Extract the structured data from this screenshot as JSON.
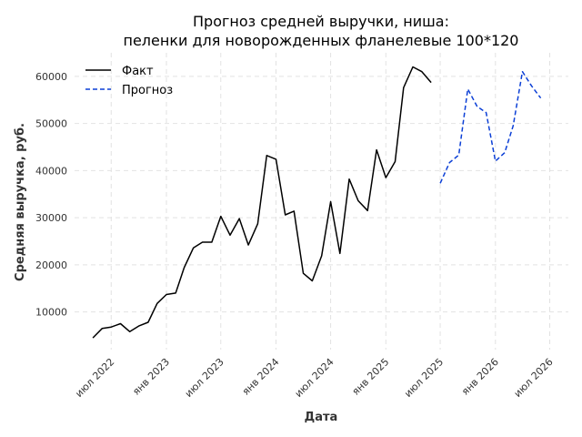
{
  "chart_data": {
    "type": "line",
    "title": "Прогноз средней выручки, ниша:",
    "subtitle": "пеленки для новорожденных фланелевые 100*120",
    "xlabel": "Дата",
    "ylabel": "Средняя выручка, руб.",
    "xlim": [
      "2022-03-01",
      "2026-09-01"
    ],
    "ylim": [
      2000,
      65000
    ],
    "grid": true,
    "legend_position": "top-left",
    "x_ticks": [
      {
        "date": "2022-07-01",
        "label": "июл 2022"
      },
      {
        "date": "2023-01-01",
        "label": "янв 2023"
      },
      {
        "date": "2023-07-01",
        "label": "июл 2023"
      },
      {
        "date": "2024-01-01",
        "label": "янв 2024"
      },
      {
        "date": "2024-07-01",
        "label": "июл 2024"
      },
      {
        "date": "2025-01-01",
        "label": "янв 2025"
      },
      {
        "date": "2025-07-01",
        "label": "июл 2025"
      },
      {
        "date": "2026-01-01",
        "label": "янв 2026"
      },
      {
        "date": "2026-07-01",
        "label": "июл 2026"
      }
    ],
    "y_ticks": [
      {
        "value": 10000,
        "label": "10000"
      },
      {
        "value": 20000,
        "label": "20000"
      },
      {
        "value": 30000,
        "label": "30000"
      },
      {
        "value": 40000,
        "label": "40000"
      },
      {
        "value": 50000,
        "label": "50000"
      },
      {
        "value": 60000,
        "label": "60000"
      }
    ],
    "series": [
      {
        "name": "Факт",
        "color": "#000000",
        "style": "solid",
        "points": [
          {
            "x": "2022-05-01",
            "y": 4500
          },
          {
            "x": "2022-06-01",
            "y": 6500
          },
          {
            "x": "2022-07-01",
            "y": 6800
          },
          {
            "x": "2022-08-01",
            "y": 7500
          },
          {
            "x": "2022-09-01",
            "y": 5800
          },
          {
            "x": "2022-10-01",
            "y": 7000
          },
          {
            "x": "2022-11-01",
            "y": 7800
          },
          {
            "x": "2022-12-01",
            "y": 11800
          },
          {
            "x": "2023-01-01",
            "y": 13700
          },
          {
            "x": "2023-02-01",
            "y": 14000
          },
          {
            "x": "2023-03-01",
            "y": 19400
          },
          {
            "x": "2023-04-01",
            "y": 23600
          },
          {
            "x": "2023-05-01",
            "y": 24800
          },
          {
            "x": "2023-06-01",
            "y": 24800
          },
          {
            "x": "2023-07-01",
            "y": 30300
          },
          {
            "x": "2023-08-01",
            "y": 26300
          },
          {
            "x": "2023-09-01",
            "y": 29800
          },
          {
            "x": "2023-10-01",
            "y": 24200
          },
          {
            "x": "2023-11-01",
            "y": 28700
          },
          {
            "x": "2023-12-01",
            "y": 43200
          },
          {
            "x": "2024-01-01",
            "y": 42400
          },
          {
            "x": "2024-02-01",
            "y": 30600
          },
          {
            "x": "2024-03-01",
            "y": 31400
          },
          {
            "x": "2024-04-01",
            "y": 18200
          },
          {
            "x": "2024-05-01",
            "y": 16600
          },
          {
            "x": "2024-06-01",
            "y": 21900
          },
          {
            "x": "2024-07-01",
            "y": 33400
          },
          {
            "x": "2024-08-01",
            "y": 22400
          },
          {
            "x": "2024-09-01",
            "y": 38200
          },
          {
            "x": "2024-10-01",
            "y": 33600
          },
          {
            "x": "2024-11-01",
            "y": 31500
          },
          {
            "x": "2024-12-01",
            "y": 44400
          },
          {
            "x": "2025-01-01",
            "y": 38500
          },
          {
            "x": "2025-02-01",
            "y": 41900
          },
          {
            "x": "2025-03-01",
            "y": 57600
          },
          {
            "x": "2025-04-01",
            "y": 62000
          },
          {
            "x": "2025-05-01",
            "y": 61000
          },
          {
            "x": "2025-06-01",
            "y": 58700
          }
        ]
      },
      {
        "name": "Прогноз",
        "color": "#0b3fd6",
        "style": "dashed",
        "points": [
          {
            "x": "2025-07-01",
            "y": 37300
          },
          {
            "x": "2025-08-01",
            "y": 41700
          },
          {
            "x": "2025-09-01",
            "y": 43300
          },
          {
            "x": "2025-10-01",
            "y": 57300
          },
          {
            "x": "2025-11-01",
            "y": 53600
          },
          {
            "x": "2025-12-01",
            "y": 52300
          },
          {
            "x": "2026-01-01",
            "y": 42000
          },
          {
            "x": "2026-02-01",
            "y": 43800
          },
          {
            "x": "2026-03-01",
            "y": 49500
          },
          {
            "x": "2026-04-01",
            "y": 61000
          },
          {
            "x": "2026-05-01",
            "y": 58000
          },
          {
            "x": "2026-06-01",
            "y": 55400
          }
        ]
      }
    ]
  }
}
